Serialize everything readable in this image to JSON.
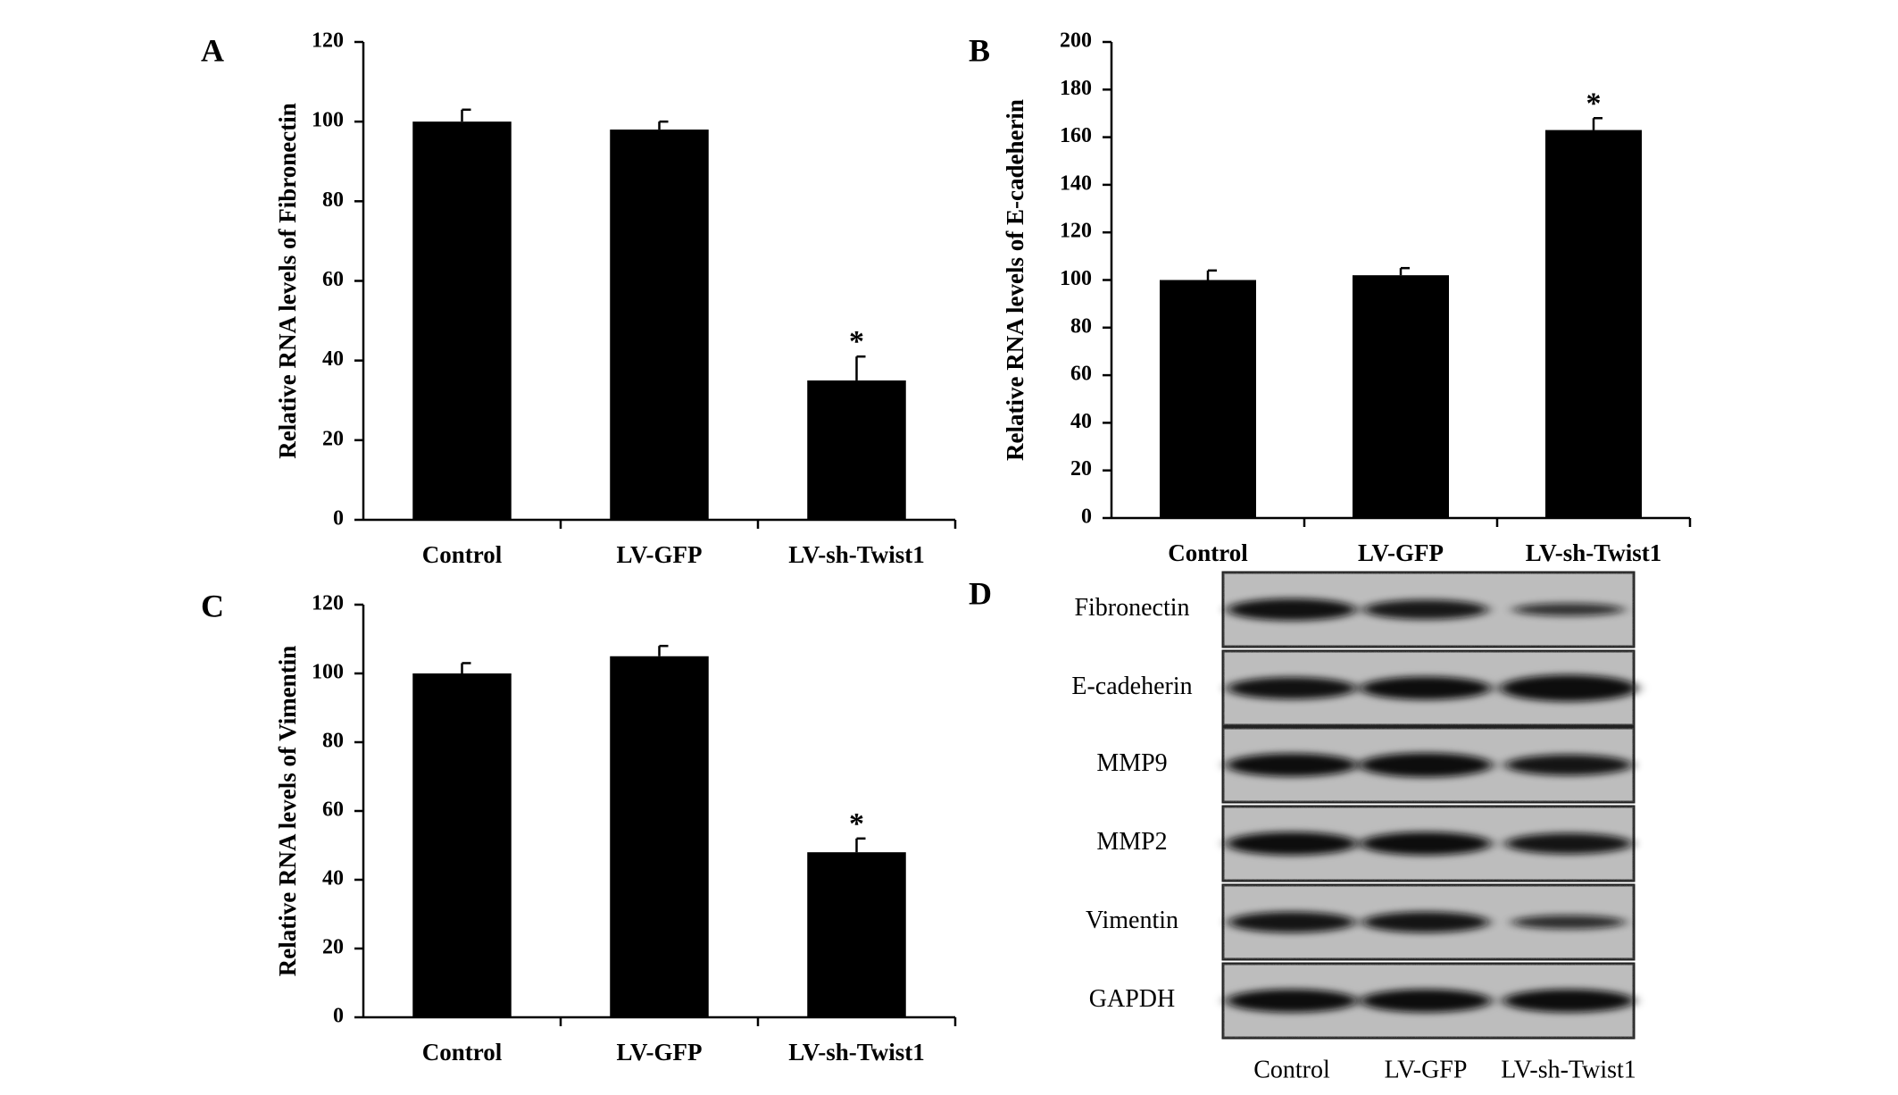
{
  "panel_d": {
    "letter": "D",
    "rows": [
      "Fibronectin",
      "E-cadeherin",
      "MMP9",
      "MMP2",
      "Vimentin",
      "GAPDH"
    ],
    "lanes": [
      "Control",
      "LV-GFP",
      "LV-sh-Twist1"
    ],
    "band_intensity": [
      [
        0.95,
        0.85,
        0.55
      ],
      [
        0.95,
        1.0,
        1.15
      ],
      [
        1.0,
        1.05,
        0.9
      ],
      [
        1.0,
        1.0,
        0.9
      ],
      [
        0.9,
        0.9,
        0.6
      ],
      [
        1.0,
        1.0,
        1.0
      ]
    ]
  },
  "chart_data": [
    {
      "panel": "A",
      "type": "bar",
      "categories": [
        "Control",
        "LV-GFP",
        "LV-sh-Twist1"
      ],
      "values": [
        100,
        98,
        35
      ],
      "errors": [
        3,
        2,
        6
      ],
      "significance": [
        "",
        "",
        "*"
      ],
      "ylabel": "Relative RNA levels of Fibronectin",
      "xlabel": "",
      "ylim": [
        0,
        120
      ],
      "yticks": [
        0,
        20,
        40,
        60,
        80,
        100,
        120
      ],
      "bar_color": "#000000"
    },
    {
      "panel": "B",
      "type": "bar",
      "categories": [
        "Control",
        "LV-GFP",
        "LV-sh-Twist1"
      ],
      "values": [
        100,
        102,
        163
      ],
      "errors": [
        4,
        3,
        5
      ],
      "significance": [
        "",
        "",
        "*"
      ],
      "ylabel": "Relative RNA levels of E-cadeherin",
      "xlabel": "",
      "ylim": [
        0,
        200
      ],
      "yticks": [
        0,
        20,
        40,
        60,
        80,
        100,
        120,
        140,
        160,
        180,
        200
      ],
      "bar_color": "#000000"
    },
    {
      "panel": "C",
      "type": "bar",
      "categories": [
        "Control",
        "LV-GFP",
        "LV-sh-Twist1"
      ],
      "values": [
        100,
        105,
        48
      ],
      "errors": [
        3,
        3,
        4
      ],
      "significance": [
        "",
        "",
        "*"
      ],
      "ylabel": "Relative RNA levels of Vimentin",
      "xlabel": "",
      "ylim": [
        0,
        120
      ],
      "yticks": [
        0,
        20,
        40,
        60,
        80,
        100,
        120
      ],
      "bar_color": "#000000"
    }
  ]
}
